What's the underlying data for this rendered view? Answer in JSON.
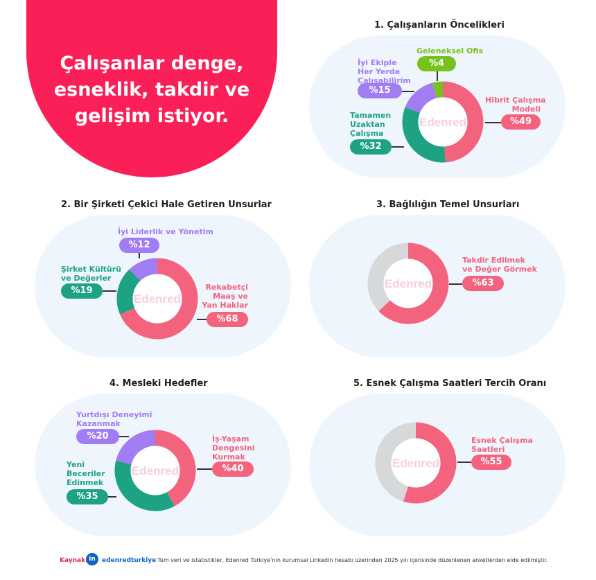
{
  "hero": {
    "lines": [
      "Çalışanlar denge,",
      "esneklik, takdir ve",
      "gelişim istiyor."
    ]
  },
  "colors": {
    "pink": "#f3637e",
    "teal": "#1ea284",
    "purple": "#a27cf2",
    "green": "#78c21d",
    "gray": "#d6d8da",
    "hero": "#fb1f58"
  },
  "watermark": "Edenred",
  "chart_data": [
    {
      "type": "pie",
      "title": "1. Çalışanların Öncelikleri",
      "slices": [
        {
          "label": "Hibrit Çalışma Modeli",
          "value": 49,
          "display": "%49",
          "color": "#f3637e"
        },
        {
          "label": "Tamamen Uzaktan Çalışma",
          "value": 32,
          "display": "%32",
          "color": "#1ea284"
        },
        {
          "label": "İyi Ekiple Her Yerde Çalışabilirim",
          "value": 15,
          "display": "%15",
          "color": "#a27cf2"
        },
        {
          "label": "Geleneksel Ofis",
          "value": 4,
          "display": "%4",
          "color": "#78c21d"
        }
      ]
    },
    {
      "type": "pie",
      "title": "2. Bir Şirketi Çekici Hale Getiren Unsurlar",
      "slices": [
        {
          "label": "Rekabetçi Maaş ve Yan Haklar",
          "value": 68,
          "display": "%68",
          "color": "#f3637e"
        },
        {
          "label": "Şirket Kültürü ve Değerler",
          "value": 19,
          "display": "%19",
          "color": "#1ea284"
        },
        {
          "label": "İyi Liderlik ve Yönetim",
          "value": 12,
          "display": "%12",
          "color": "#a27cf2"
        }
      ]
    },
    {
      "type": "pie",
      "title": "3. Bağlılığın Temel Unsurları",
      "slices": [
        {
          "label": "Takdir Edilmek ve Değer Görmek",
          "value": 63,
          "display": "%63",
          "color": "#f3637e"
        },
        {
          "label": "",
          "value": 37,
          "display": "",
          "color": "#d6d8da"
        }
      ]
    },
    {
      "type": "pie",
      "title": "4. Mesleki Hedefler",
      "slices": [
        {
          "label": "İş-Yaşam Dengesini Kurmak",
          "value": 40,
          "display": "%40",
          "color": "#f3637e"
        },
        {
          "label": "Yeni Beceriler Edinmek",
          "value": 35,
          "display": "%35",
          "color": "#1ea284"
        },
        {
          "label": "Yurtdışı Deneyimi Kazanmak",
          "value": 20,
          "display": "%20",
          "color": "#a27cf2"
        }
      ]
    },
    {
      "type": "pie",
      "title": "5. Esnek Çalışma Saatleri Tercih Oranı",
      "slices": [
        {
          "label": "Esnek Çalışma Saatleri",
          "value": 55,
          "display": "%55",
          "color": "#f3637e"
        },
        {
          "label": "",
          "value": 45,
          "display": "",
          "color": "#d6d8da"
        }
      ]
    }
  ],
  "labels": {
    "c1": {
      "hibrit": [
        "Hibrit Çalışma",
        "Modeli"
      ],
      "uzak": [
        "Tamamen",
        "Uzaktan",
        "Çalışma"
      ],
      "ekip": [
        "İyi Ekiple",
        "Her Yerde",
        "Çalışabilirim"
      ],
      "ofis": [
        "Geleneksel Ofis"
      ]
    },
    "c2": {
      "maas": [
        "Rekabetçi",
        "Maaş ve",
        "Yan Haklar"
      ],
      "kultur": [
        "Şirket Kültürü",
        "ve Değerler"
      ],
      "lider": [
        "İyi Liderlik ve Yönetim"
      ]
    },
    "c3": {
      "takdir": [
        "Takdir Edilmek",
        "ve Değer Görmek"
      ]
    },
    "c4": {
      "denge": [
        "İş-Yaşam",
        "Dengesini",
        "Kurmak"
      ],
      "beceri": [
        "Yeni",
        "Beceriler",
        "Edinmek"
      ],
      "yurtdisi": [
        "Yurtdışı Deneyimi",
        "Kazanmak"
      ]
    },
    "c5": {
      "esnek": [
        "Esnek Çalışma",
        "Saatleri"
      ]
    }
  },
  "footer": {
    "source_label": "Kaynak:",
    "linkedin_icon": "in",
    "handle": "edenredturkiye",
    "note": "Tüm veri ve istatistikler, Edenred Türkiye’nin kurumsal LinkedIn hesabı üzerinden 2025 yılı içerisinde düzenlenen anketlerden elde edilmiştir."
  }
}
